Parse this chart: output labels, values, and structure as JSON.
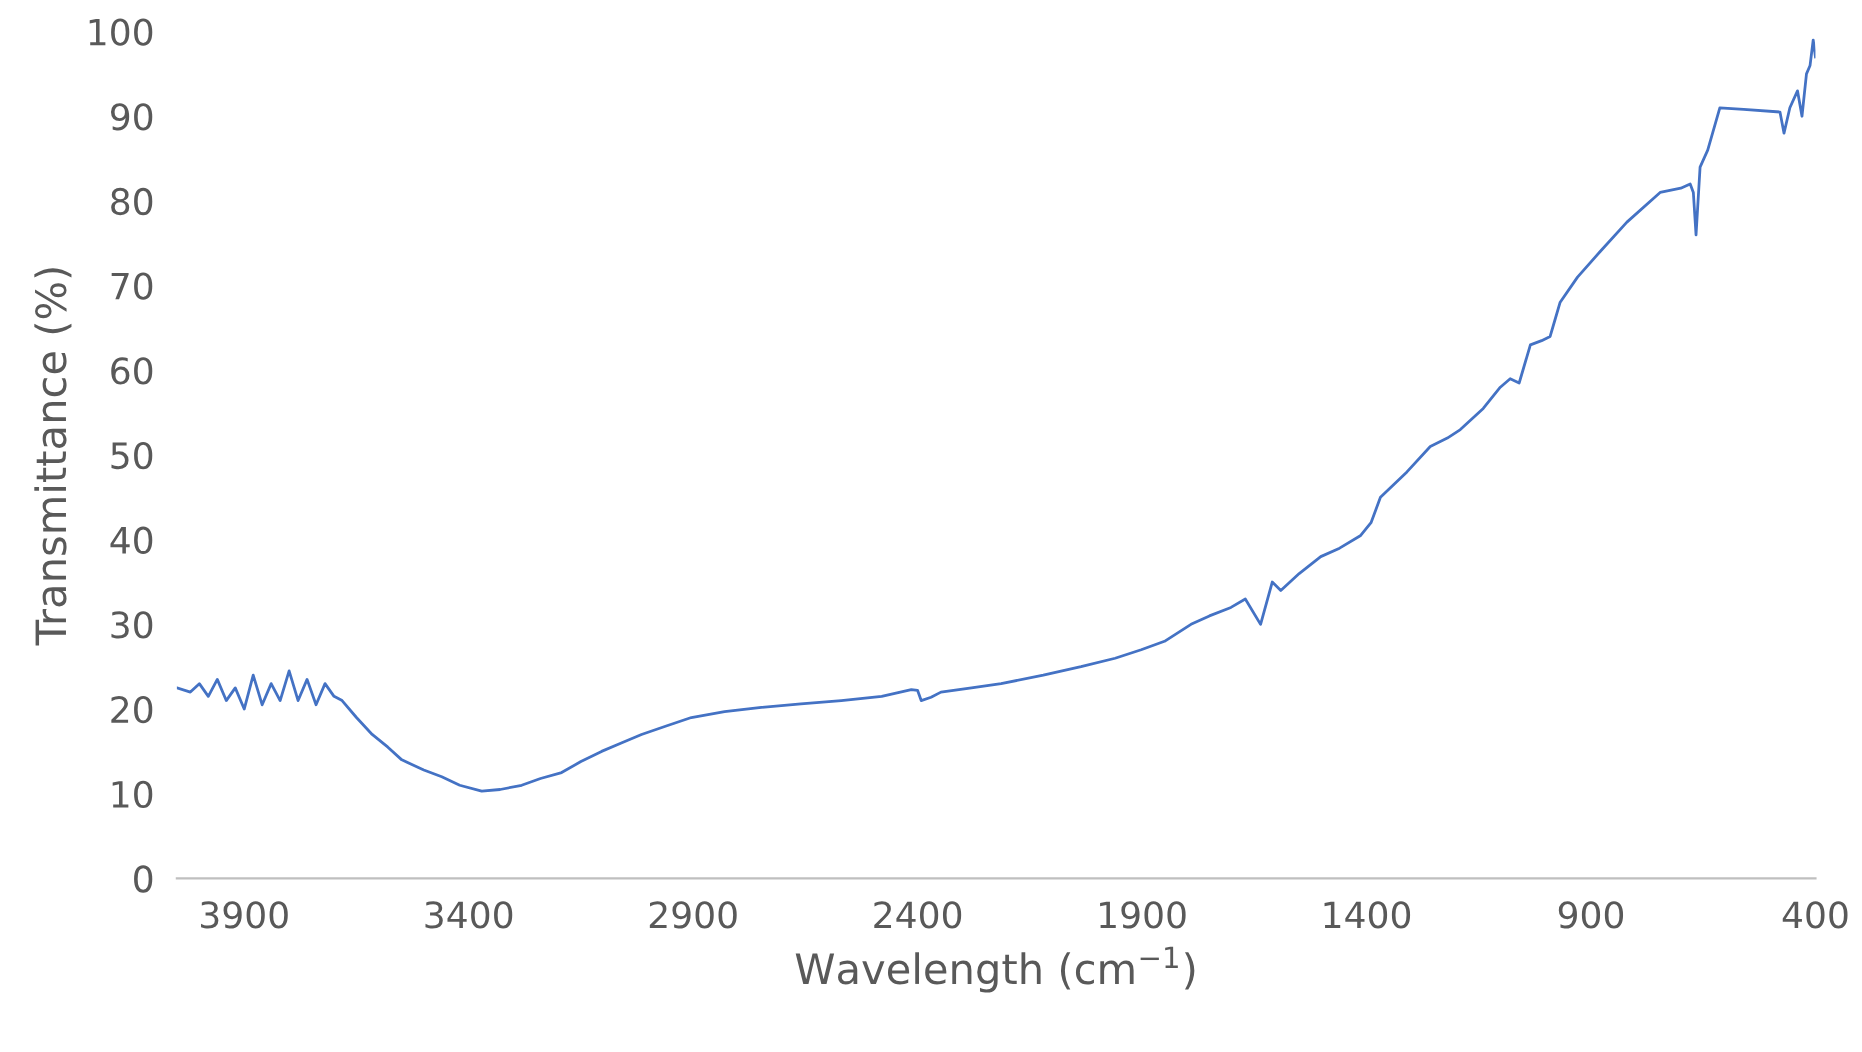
{
  "chart_data": {
    "type": "line",
    "xlabel": "Wavelength (cm$^{−1}$)",
    "ylabel": "Transmittance (%)",
    "xlim": [
      4050,
      400
    ],
    "ylim": [
      0,
      100
    ],
    "xticks": [
      3900,
      3400,
      2900,
      2400,
      1900,
      1400,
      900,
      400
    ],
    "yticks": [
      0,
      10,
      20,
      30,
      40,
      50,
      60,
      70,
      80,
      90,
      100
    ],
    "grid": false,
    "marker": "none",
    "line_style": "solid",
    "series": [
      {
        "color": "#4472c4",
        "x": [
          4050,
          4020,
          4000,
          3980,
          3960,
          3940,
          3920,
          3900,
          3880,
          3860,
          3840,
          3820,
          3800,
          3780,
          3760,
          3740,
          3720,
          3700,
          3682,
          3650,
          3615,
          3580,
          3549,
          3500,
          3460,
          3420,
          3371,
          3330,
          3282,
          3240,
          3193,
          3150,
          3104,
          3060,
          3015,
          2960,
          2904,
          2830,
          2748,
          2660,
          2570,
          2480,
          2414,
          2400,
          2392,
          2370,
          2348,
          2280,
          2214,
          2120,
          2036,
          1960,
          1902,
          1850,
          1791,
          1750,
          1702,
          1670,
          1636,
          1610,
          1591,
          1550,
          1502,
          1460,
          1413,
          1390,
          1369,
          1310,
          1258,
          1220,
          1191,
          1140,
          1102,
          1080,
          1060,
          1035,
          1010,
          991,
          980,
          969,
          930,
          880,
          820,
          746,
          700,
          679,
          672,
          666,
          657,
          640,
          613,
          560,
          479,
          470,
          457,
          440,
          430,
          420,
          412,
          405,
          400
        ],
        "values": [
          22.5,
          22,
          23,
          21.5,
          23.5,
          21,
          22.5,
          20,
          24,
          20.5,
          23,
          21,
          24.5,
          21,
          23.5,
          20.5,
          23,
          21.5,
          21,
          19,
          17,
          15.5,
          14,
          12.8,
          12,
          11,
          10.3,
          10.5,
          11,
          11.8,
          12.5,
          13.8,
          15,
          16,
          17,
          18,
          19,
          19.7,
          20.2,
          20.6,
          21,
          21.5,
          22.3,
          22.2,
          21,
          21.4,
          22,
          22.5,
          23,
          24,
          25,
          26,
          27,
          28,
          30,
          31,
          32,
          33,
          30,
          35,
          34,
          36,
          38,
          39,
          40.5,
          42,
          45,
          48,
          51,
          52,
          53,
          55.5,
          58,
          59,
          58.5,
          63,
          63.5,
          64,
          66,
          68,
          71,
          74,
          77.5,
          81,
          81.5,
          82,
          81,
          76,
          84,
          86,
          91,
          90.8,
          90.5,
          88,
          91,
          93,
          90,
          95,
          96,
          99,
          97
        ]
      }
    ]
  }
}
